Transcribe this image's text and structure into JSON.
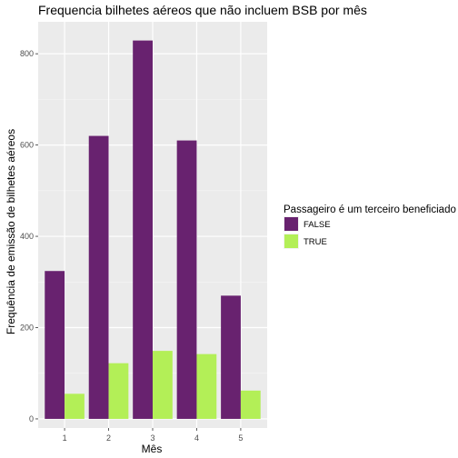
{
  "chart_data": {
    "type": "bar",
    "title": "Frequencia bilhetes aéreos que não incluem BSB por mês",
    "xlabel": "Mês",
    "ylabel": "Frequência de emissão de bilhetes aéreos",
    "categories": [
      "1",
      "2",
      "3",
      "4",
      "5"
    ],
    "series": [
      {
        "name": "FALSE",
        "values": [
          324,
          620,
          829,
          610,
          270
        ],
        "color": "#68226f"
      },
      {
        "name": "TRUE",
        "values": [
          55,
          122,
          149,
          142,
          62
        ],
        "color": "#b3ef57"
      }
    ],
    "ylim": [
      -20,
      870
    ],
    "yticks": [
      0,
      200,
      400,
      600,
      800
    ],
    "grid": true,
    "panel_background": "#ebebeb",
    "legend": {
      "title": "Passageiro é um terceiro beneficiado",
      "placement": "right"
    }
  }
}
